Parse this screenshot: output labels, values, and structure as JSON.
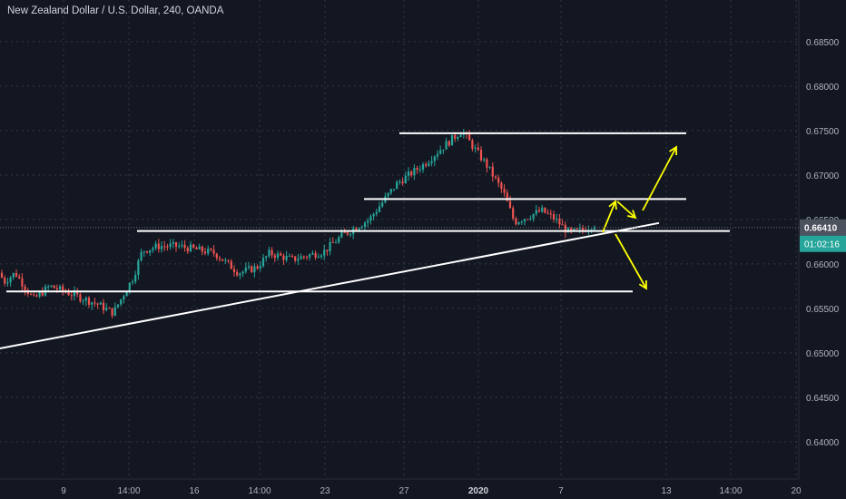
{
  "header": {
    "title": "New Zealand Dollar / U.S. Dollar, 240, OANDA"
  },
  "price_axis": {
    "ticks": [
      "0.68500",
      "0.68000",
      "0.67500",
      "0.67000",
      "0.66500",
      "0.66000",
      "0.65500",
      "0.65000",
      "0.64500",
      "0.64000"
    ],
    "last_price": "0.66410",
    "countdown": "01:02:16"
  },
  "time_axis": {
    "ticks": [
      "9",
      "14:00",
      "16",
      "14:00",
      "23",
      "27",
      "2020",
      "7",
      "13",
      "14:00",
      "20"
    ]
  },
  "chart_data": {
    "type": "candlestick",
    "ylim": [
      0.6355,
      0.6895
    ],
    "grid": true,
    "colors": {
      "background": "#131722",
      "up": "#26a69a",
      "down": "#ef5350",
      "drawing": "#ffffff",
      "arrow": "#ffff00",
      "price_label": "#4c525e",
      "countdown_label": "#26a69a"
    },
    "resistance_levels": [
      0.6747,
      0.6673,
      0.6637,
      0.6569
    ],
    "trendline": {
      "from": {
        "date": "2019-12-04",
        "price": 0.6505
      },
      "to": {
        "date": "2020-01-11",
        "price": 0.6646
      }
    },
    "scenario_arrows": [
      "bounce-up-to-0.6673",
      "pullback",
      "breakout-to-0.6730",
      "breakdown-to-0.6569"
    ]
  }
}
